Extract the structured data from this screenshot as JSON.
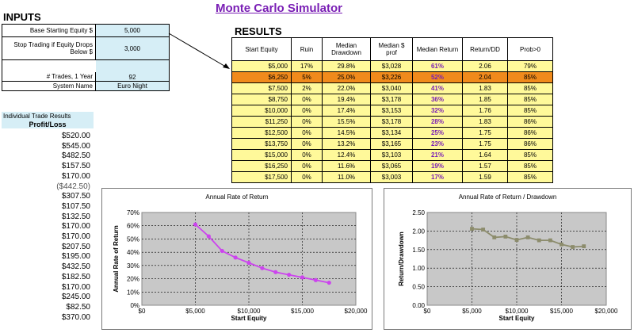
{
  "title": "Monte Carlo Simulator",
  "inputs": {
    "heading": "INPUTS",
    "rows": [
      {
        "label": "Base Starting Equity $",
        "value": "5,000"
      },
      {
        "label": "Stop Trading if Equity Drops Below $",
        "value": "3,000"
      },
      {
        "label": "# Trades, 1 Year",
        "value": "92"
      },
      {
        "label": "System Name",
        "value": "Euro Night"
      }
    ]
  },
  "results": {
    "heading": "RESULTS",
    "columns": [
      "Start Equity",
      "Ruin",
      "Median Drawdown",
      "Median $ prof",
      "Median Return",
      "Return/DD",
      "Prob>0"
    ],
    "highlight_row": 1,
    "rows": [
      [
        "$5,000",
        "17%",
        "29.8%",
        "$3,028",
        "61%",
        "2.06",
        "79%"
      ],
      [
        "$6,250",
        "5%",
        "25.0%",
        "$3,226",
        "52%",
        "2.04",
        "85%"
      ],
      [
        "$7,500",
        "2%",
        "22.0%",
        "$3,040",
        "41%",
        "1.83",
        "85%"
      ],
      [
        "$8,750",
        "0%",
        "19.4%",
        "$3,178",
        "36%",
        "1.85",
        "85%"
      ],
      [
        "$10,000",
        "0%",
        "17.4%",
        "$3,153",
        "32%",
        "1.76",
        "85%"
      ],
      [
        "$11,250",
        "0%",
        "15.5%",
        "$3,178",
        "28%",
        "1.83",
        "86%"
      ],
      [
        "$12,500",
        "0%",
        "14.5%",
        "$3,134",
        "25%",
        "1.75",
        "86%"
      ],
      [
        "$13,750",
        "0%",
        "13.2%",
        "$3,165",
        "23%",
        "1.75",
        "86%"
      ],
      [
        "$15,000",
        "0%",
        "12.4%",
        "$3,103",
        "21%",
        "1.64",
        "85%"
      ],
      [
        "$16,250",
        "0%",
        "11.6%",
        "$3,065",
        "19%",
        "1.57",
        "85%"
      ],
      [
        "$17,500",
        "0%",
        "11.0%",
        "$3,003",
        "17%",
        "1.59",
        "85%"
      ]
    ]
  },
  "trades": {
    "heading": "Individual Trade Results",
    "subheading": "Profit/Loss",
    "values": [
      "$520.00",
      "$545.00",
      "$482.50",
      "$157.50",
      "$170.00",
      "($442.50)",
      "$307.50",
      "$107.50",
      "$132.50",
      "$170.00",
      "$170.00",
      "$207.50",
      "$195.00",
      "$432.50",
      "$182.50",
      "$170.00",
      "$245.00",
      "$82.50",
      "$370.00"
    ]
  },
  "colors": {
    "title": "#7a1fb5",
    "highlight": "#f08a1c",
    "table_bg": "#fff99a",
    "input_bg": "#d6eef6",
    "plot_bg": "#c8c8c8",
    "line1": "#cc44ee",
    "line2": "#8c8c6c"
  },
  "chart_data": [
    {
      "type": "line",
      "title": "Annual Rate of Return",
      "xlabel": "Start Equity",
      "ylabel": "Annual Rate of Return",
      "x": [
        5000,
        6250,
        7500,
        8750,
        10000,
        11250,
        12500,
        13750,
        15000,
        16250,
        17500
      ],
      "series": [
        {
          "values": [
            0.61,
            0.52,
            0.41,
            0.36,
            0.32,
            0.28,
            0.25,
            0.23,
            0.21,
            0.19,
            0.17
          ]
        }
      ],
      "xlim": [
        0,
        20000
      ],
      "ylim": [
        0,
        0.7
      ],
      "xticks": [
        "$0",
        "$5,000",
        "$10,000",
        "$15,000",
        "$20,000"
      ],
      "yticks": [
        "0%",
        "10%",
        "20%",
        "30%",
        "40%",
        "50%",
        "60%",
        "70%"
      ],
      "grid": true
    },
    {
      "type": "line",
      "title": "Annual Rate of Return / Drawdown",
      "xlabel": "Start Equity",
      "ylabel": "Return/Drawdown",
      "x": [
        5000,
        6250,
        7500,
        8750,
        10000,
        11250,
        12500,
        13750,
        15000,
        16250,
        17500
      ],
      "series": [
        {
          "values": [
            2.06,
            2.04,
            1.83,
            1.85,
            1.76,
            1.83,
            1.75,
            1.75,
            1.64,
            1.57,
            1.59
          ]
        }
      ],
      "xlim": [
        0,
        20000
      ],
      "ylim": [
        0,
        2.5
      ],
      "xticks": [
        "$0",
        "$5,000",
        "$10,000",
        "$15,000",
        "$20,000"
      ],
      "yticks": [
        "0.00",
        "0.50",
        "1.00",
        "1.50",
        "2.00",
        "2.50"
      ],
      "grid": true
    }
  ]
}
